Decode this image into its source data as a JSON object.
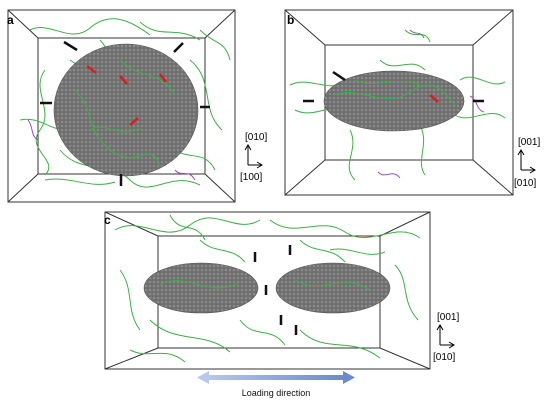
{
  "figure": {
    "panels": [
      {
        "id": "a",
        "label": "a",
        "axis_h": "[100]",
        "axis_v": "[010]"
      },
      {
        "id": "b",
        "label": "b",
        "axis_h": "[010]",
        "axis_v": "[001]"
      },
      {
        "id": "c",
        "label": "c",
        "axis_h": "[010]",
        "axis_v": "[001]"
      }
    ],
    "loading_direction": "Loading direction",
    "colors": {
      "box_line": "#333333",
      "precipitate": "#6b6b6b",
      "dislocation_green": "#3cb043",
      "dislocation_purple": "#9b4fc4",
      "black_arrow": "#111111",
      "red_arrow": "#d62020",
      "load_arrow": "#8fa7db"
    }
  }
}
